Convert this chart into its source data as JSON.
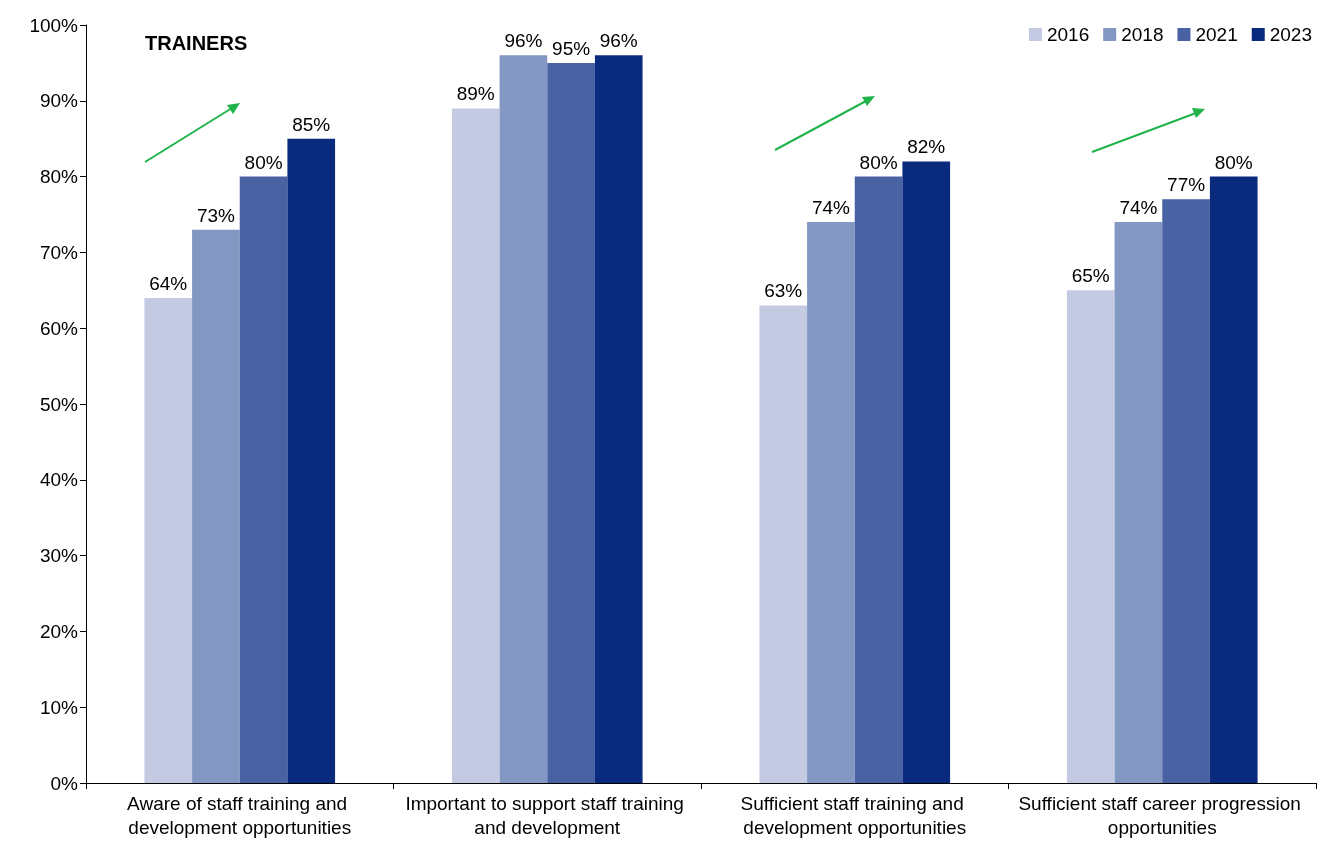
{
  "chart_data": {
    "type": "bar",
    "title": "TRAINERS",
    "categories": [
      "Aware of staff training and development opportunities",
      "Important to support staff training and development",
      "Sufficient staff training and development opportunities",
      "Sufficient staff career progression opportunities"
    ],
    "series": [
      {
        "name": "2016",
        "color": "#c5cae3",
        "values": [
          64,
          89,
          63,
          65
        ],
        "value_labels": [
          "64%",
          "89%",
          "63%",
          "65%"
        ]
      },
      {
        "name": "2018",
        "color": "#8397c3",
        "values": [
          73,
          96,
          74,
          74
        ],
        "value_labels": [
          "73%",
          "96%",
          "74%",
          "74%"
        ]
      },
      {
        "name": "2021",
        "color": "#4862a4",
        "values": [
          80,
          95,
          80,
          77
        ],
        "value_labels": [
          "80%",
          "95%",
          "80%",
          "77%"
        ]
      },
      {
        "name": "2023",
        "color": "#0a2a7e",
        "values": [
          85,
          96,
          82,
          80
        ],
        "value_labels": [
          "85%",
          "96%",
          "82%",
          "80%"
        ]
      }
    ],
    "ylim": [
      0,
      100
    ],
    "yticks": [
      {
        "value": 0,
        "label": "0%"
      },
      {
        "value": 10,
        "label": "10%"
      },
      {
        "value": 20,
        "label": "20%"
      },
      {
        "value": 30,
        "label": "30%"
      },
      {
        "value": 40,
        "label": "40%"
      },
      {
        "value": 50,
        "label": "50%"
      },
      {
        "value": 60,
        "label": "60%"
      },
      {
        "value": 70,
        "label": "70%"
      },
      {
        "value": 80,
        "label": "80%"
      },
      {
        "value": 90,
        "label": "90%"
      },
      {
        "value": 100,
        "label": "100%"
      }
    ],
    "grid": false,
    "legend": "top right"
  }
}
